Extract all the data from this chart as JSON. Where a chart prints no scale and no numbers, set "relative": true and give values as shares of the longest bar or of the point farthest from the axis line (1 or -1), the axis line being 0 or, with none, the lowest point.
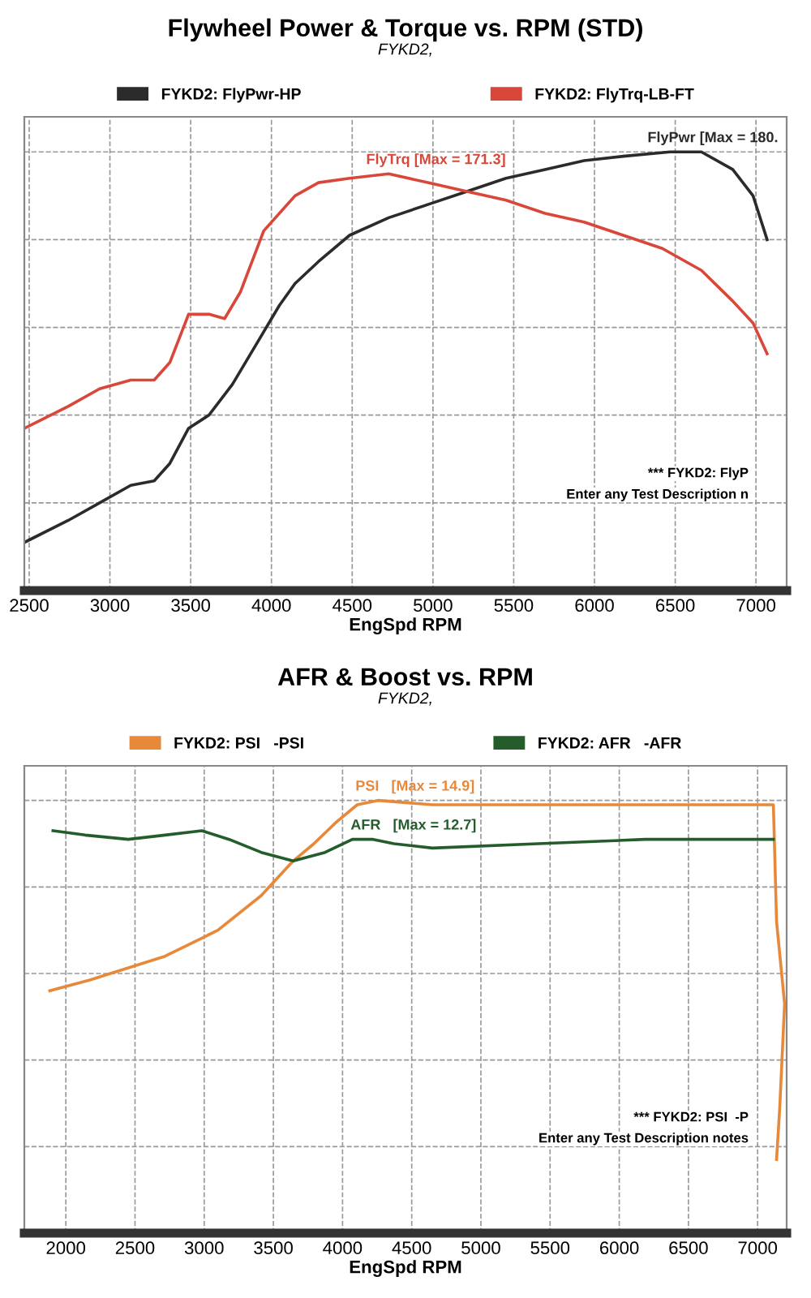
{
  "chart_data": [
    {
      "type": "line",
      "title": "Flywheel Power & Torque vs. RPM (STD)",
      "subtitle": "FYKD2,",
      "xlabel": "EngSpd RPM",
      "relative": true,
      "xlim": [
        2470,
        7190
      ],
      "xticks": [
        2500,
        3000,
        3500,
        4000,
        4500,
        5000,
        5500,
        6000,
        6500,
        7000
      ],
      "grid": true,
      "legend": "top",
      "line_style": "solid",
      "marker": "none",
      "series": [
        {
          "name": "FYKD2: FlyPwr-HP",
          "color": "#2b2b2b",
          "x": [
            2471,
            2742,
            2936,
            3129,
            3274,
            3371,
            3487,
            3613,
            3758,
            3904,
            4049,
            4146,
            4291,
            4484,
            4726,
            4968,
            5210,
            5452,
            5694,
            5936,
            6178,
            6468,
            6662,
            6856,
            6982,
            7069
          ],
          "values": [
            0.11,
            0.16,
            0.2,
            0.24,
            0.25,
            0.29,
            0.37,
            0.4,
            0.47,
            0.56,
            0.65,
            0.7,
            0.75,
            0.81,
            0.85,
            0.88,
            0.91,
            0.94,
            0.96,
            0.98,
            0.99,
            1.0,
            1.0,
            0.96,
            0.9,
            0.8
          ]
        },
        {
          "name": "FYKD2: FlyTrq-LB-FT",
          "color": "#d9473a",
          "x": [
            2471,
            2742,
            2936,
            3129,
            3274,
            3371,
            3487,
            3613,
            3710,
            3807,
            3952,
            4146,
            4291,
            4484,
            4726,
            4968,
            5210,
            5452,
            5694,
            5936,
            6178,
            6420,
            6662,
            6856,
            6982,
            7069
          ],
          "values": [
            0.37,
            0.42,
            0.46,
            0.48,
            0.48,
            0.52,
            0.63,
            0.63,
            0.62,
            0.68,
            0.82,
            0.9,
            0.93,
            0.94,
            0.95,
            0.93,
            0.91,
            0.89,
            0.86,
            0.84,
            0.81,
            0.78,
            0.73,
            0.66,
            0.61,
            0.54
          ]
        }
      ],
      "annotations": [
        {
          "text": "FlyPwr [Max = 180.",
          "x": 6468,
          "y": 1.0
        },
        {
          "text": "FlyTrq [Max = 171.3]",
          "x": 4726,
          "y": 0.95
        },
        "*** FYKD2: FlyP",
        "Enter any Test Description n"
      ]
    },
    {
      "type": "line",
      "title": "AFR & Boost vs. RPM",
      "subtitle": "FYKD2,",
      "xlabel": "EngSpd RPM",
      "relative": true,
      "xlim": [
        1700,
        7210
      ],
      "xticks": [
        2000,
        2500,
        3000,
        3500,
        4000,
        4500,
        5000,
        5500,
        6000,
        6500,
        7000
      ],
      "grid": true,
      "legend": "top",
      "line_style": "solid",
      "marker": "none",
      "series": [
        {
          "name": "FYKD2: PSI   -PSI",
          "color": "#e8893a",
          "x": [
            1884,
            2174,
            2717,
            3099,
            3412,
            3643,
            3793,
            3955,
            4106,
            4256,
            4650,
            5413,
            6188,
            6964,
            7079,
            7114,
            7137,
            7195,
            7160,
            7137
          ],
          "values": [
            0.56,
            0.585,
            0.64,
            0.7,
            0.78,
            0.86,
            0.9,
            0.95,
            0.99,
            1.0,
            0.99,
            0.99,
            0.99,
            0.99,
            0.99,
            0.99,
            0.72,
            0.53,
            0.29,
            0.17
          ]
        },
        {
          "name": "FYKD2: AFR   -AFR",
          "color": "#245c2c",
          "x": [
            1907,
            2139,
            2451,
            2717,
            2983,
            3180,
            3412,
            3643,
            3874,
            4071,
            4221,
            4372,
            4650,
            5413,
            6188,
            6964,
            7114
          ],
          "values": [
            0.93,
            0.92,
            0.91,
            0.92,
            0.93,
            0.91,
            0.88,
            0.86,
            0.88,
            0.91,
            0.91,
            0.9,
            0.89,
            0.9,
            0.91,
            0.91,
            0.91
          ]
        }
      ],
      "annotations": [
        {
          "text": "PSI   [Max = 14.9]",
          "x": 4256,
          "y": 1.0
        },
        {
          "text": "AFR   [Max = 12.7]",
          "x": 4221,
          "y": 0.91
        },
        "*** FYKD2: PSI  -P",
        "Enter any Test Description notes"
      ]
    }
  ]
}
